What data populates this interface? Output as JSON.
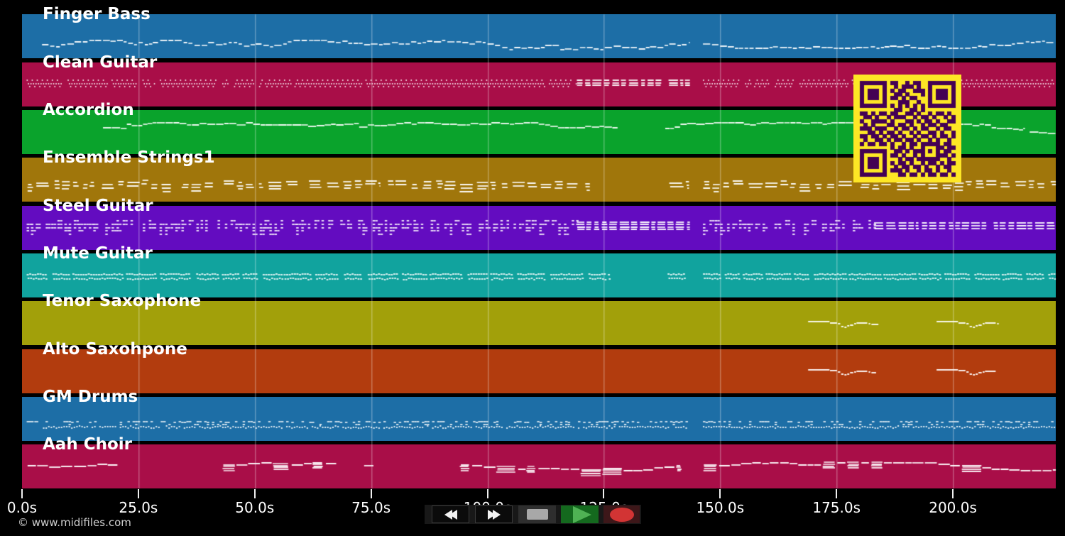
{
  "app": {
    "copyright": "© www.midifiles.com"
  },
  "colors": {
    "background": "#000000",
    "note": "#ffffff",
    "grid": "rgba(255,255,255,0.30)",
    "tick": "#f0f0f0",
    "axis_label": "#ffffff",
    "copyright": "#cfcfcf",
    "transport_bar": "#181818",
    "btn_dark": "#0b0b0b",
    "btn_border": "#3a3a3a",
    "stop_bg": "#2e2e2e",
    "stop_icon": "#a8a8a8",
    "play_bg": "#14691e",
    "play_icon": "#4fb254",
    "rec_bg": "#3d1719",
    "rec_icon": "#d23434",
    "qr_bg": "#fde725",
    "qr_fg": "#440154"
  },
  "tracks": [
    {
      "name": "Finger Bass",
      "color": "#1d6ea6",
      "pattern": [
        {
          "type": "melody",
          "t": [
            4.3,
            143.5
          ],
          "lo": 0.58,
          "hi": 0.78
        },
        {
          "type": "melody",
          "t": [
            146.3,
            222.2
          ],
          "lo": 0.56,
          "hi": 0.76
        }
      ]
    },
    {
      "name": "Clean Guitar",
      "color": "#a90e48",
      "pattern": [
        {
          "type": "zigzag",
          "t": [
            1.0,
            119.2
          ],
          "hi": 0.4,
          "lo": 0.54
        },
        {
          "type": "bars",
          "t": [
            119.2,
            143.5
          ],
          "base": 0.4,
          "n": 3,
          "sp": 0.055
        },
        {
          "type": "zigzag",
          "t": [
            146.3,
            222.2
          ],
          "hi": 0.4,
          "lo": 0.54
        }
      ]
    },
    {
      "name": "Accordion",
      "color": "#0aa32c",
      "pattern": [
        {
          "type": "melody",
          "t": [
            17.4,
            128.0
          ],
          "lo": 0.28,
          "hi": 0.5,
          "cont": true
        },
        {
          "type": "melody",
          "t": [
            138.2,
            215.5
          ],
          "lo": 0.28,
          "hi": 0.52,
          "cont": true
        },
        {
          "type": "melody",
          "t": [
            216.5,
            222.2
          ],
          "lo": 0.46,
          "hi": 0.52,
          "cont": true
        }
      ]
    },
    {
      "name": "Ensemble Strings1",
      "color": "#a0760b",
      "pattern": [
        {
          "type": "chords",
          "t": [
            1.0,
            41.0
          ]
        },
        {
          "type": "chords",
          "t": [
            43.0,
            77.0
          ]
        },
        {
          "type": "chords",
          "t": [
            78.5,
            122.0
          ]
        },
        {
          "type": "chords",
          "t": [
            139.0,
            143.3
          ]
        },
        {
          "type": "chords",
          "t": [
            146.3,
            222.2
          ]
        }
      ]
    },
    {
      "name": "Steel Guitar",
      "color": "#630cc0",
      "pattern": [
        {
          "type": "dots",
          "t": [
            1.0,
            119.2
          ]
        },
        {
          "type": "bars",
          "t": [
            119.2,
            143.5
          ],
          "base": 0.36,
          "n": 4,
          "sp": 0.055
        },
        {
          "type": "dots",
          "t": [
            146.3,
            183.0
          ]
        },
        {
          "type": "bars",
          "t": [
            183.0,
            222.2
          ],
          "base": 0.38,
          "n": 3,
          "sp": 0.06
        }
      ]
    },
    {
      "name": "Mute Guitar",
      "color": "#11a39e",
      "pattern": [
        {
          "type": "strum",
          "t": [
            1.0,
            126.0
          ]
        },
        {
          "type": "strum",
          "t": [
            138.7,
            142.5
          ]
        },
        {
          "type": "strum",
          "t": [
            146.3,
            222.2
          ]
        }
      ]
    },
    {
      "name": "Tenor Saxophone",
      "color": "#a2a00a",
      "pattern": [
        {
          "type": "sax",
          "t": [
            168.9,
            184.0
          ]
        },
        {
          "type": "sax",
          "t": [
            196.5,
            210.0
          ]
        }
      ]
    },
    {
      "name": "Alto Saxohpone",
      "color": "#b23c0e",
      "pattern": [
        {
          "type": "sax",
          "t": [
            168.9,
            183.5
          ]
        },
        {
          "type": "sax",
          "t": [
            196.5,
            209.5
          ]
        }
      ]
    },
    {
      "name": "GM Drums",
      "color": "#1d6ea6",
      "pattern": [
        {
          "type": "melody",
          "t": [
            1.0,
            3.5
          ],
          "lo": 0.55,
          "hi": 0.55
        },
        {
          "type": "drums",
          "t": [
            4.5,
            143.5
          ]
        },
        {
          "type": "drums",
          "t": [
            146.3,
            222.2
          ]
        }
      ]
    },
    {
      "name": "Aah Choir",
      "color": "#a90e48",
      "pattern": [
        {
          "type": "choir",
          "t": [
            1.2,
            20.5
          ],
          "thick": false
        },
        {
          "type": "choir",
          "t": [
            43.0,
            67.5
          ],
          "thick": true
        },
        {
          "type": "choir",
          "t": [
            73.5,
            76.0
          ],
          "thick": false
        },
        {
          "type": "choir",
          "t": [
            94.0,
            141.7
          ],
          "thick": true
        },
        {
          "type": "choir",
          "t": [
            146.3,
            222.2
          ],
          "thick": true
        }
      ]
    }
  ],
  "sax_contour": [
    {
      "dt": 0.0,
      "rel": 0.45,
      "len": 4.6
    },
    {
      "dt": 4.7,
      "rel": 0.475,
      "len": 1.5
    },
    {
      "dt": 6.4,
      "rel": 0.5,
      "len": 0.5
    },
    {
      "dt": 7.1,
      "rel": 0.555,
      "len": 0.5
    },
    {
      "dt": 7.8,
      "rel": 0.575,
      "len": 0.45
    },
    {
      "dt": 8.4,
      "rel": 0.545,
      "len": 0.45
    },
    {
      "dt": 9.0,
      "rel": 0.52,
      "len": 0.7
    },
    {
      "dt": 9.9,
      "rel": 0.5,
      "len": 0.4
    },
    {
      "dt": 10.4,
      "rel": 0.485,
      "len": 2.3
    },
    {
      "dt": 13.0,
      "rel": 0.5,
      "len": 0.35
    },
    {
      "dt": 13.6,
      "rel": 0.515,
      "len": 1.5
    }
  ],
  "axis": {
    "ticks": [
      {
        "t": 0,
        "label": "0.0s"
      },
      {
        "t": 25,
        "label": "25.0s"
      },
      {
        "t": 50,
        "label": "50.0s"
      },
      {
        "t": 75,
        "label": "75.0s"
      },
      {
        "t": 100,
        "label": "100.0s"
      },
      {
        "t": 125,
        "label": "125.0s"
      },
      {
        "t": 150,
        "label": "150.0s"
      },
      {
        "t": 175,
        "label": "175.0s"
      },
      {
        "t": 200,
        "label": "200.0s"
      }
    ]
  },
  "transport": {
    "buttons": [
      {
        "name": "rewind",
        "icon": "rewind-icon"
      },
      {
        "name": "fast-forward",
        "icon": "fast-forward-icon"
      },
      {
        "name": "stop",
        "icon": "stop-icon"
      },
      {
        "name": "play",
        "icon": "play-icon"
      },
      {
        "name": "record",
        "icon": "record-icon"
      }
    ]
  },
  "qr": {
    "rows": [
      "1111111011001011001111111",
      "1000001001011101001000001",
      "1011101010110011101011101",
      "1011101001101000101011101",
      "1011101011010110001011101",
      "1000001000111001001000001",
      "1111111010101010101111111",
      "0000000001100110100000000",
      "1101011011001101001011010",
      "0110100101110010110100101",
      "1001111010001101011010011",
      "0101000110110100101101100",
      "1110111001011010110010110",
      "0011010110100101001101001",
      "1101101011010010110101101",
      "0100110101101101001010010",
      "1011011010010110111110110",
      "0000000010110100100011011",
      "1111111001101011101010110",
      "1000001011010010100011101",
      "1011101000101101111110010",
      "1011101010110100101101011",
      "1011101001011011010010110",
      "1000001011101001011010010",
      "1111111000110110101101101"
    ]
  }
}
